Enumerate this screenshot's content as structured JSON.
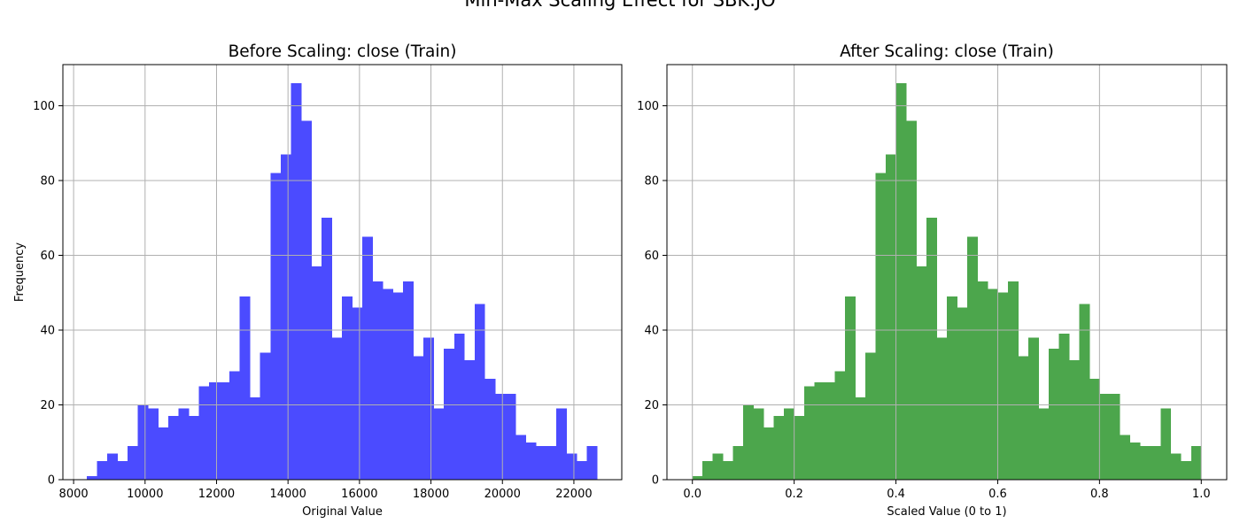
{
  "suptitle": "Min-Max Scaling Effect for SBK.JO",
  "chart_data": [
    {
      "type": "bar",
      "title": "Before Scaling: close (Train)",
      "xlabel": "Original Value",
      "ylabel": "Frequency",
      "color": "#4b4bff",
      "x_ticks": [
        8000,
        10000,
        12000,
        14000,
        16000,
        18000,
        20000,
        22000
      ],
      "x_tick_labels": [
        "8000",
        "10000",
        "12000",
        "14000",
        "16000",
        "18000",
        "20000",
        "22000"
      ],
      "y_ticks": [
        0,
        20,
        40,
        60,
        80,
        100
      ],
      "xlim": [
        7700,
        23340
      ],
      "ylim": [
        0,
        111
      ],
      "grid": true,
      "bin_start": 8364,
      "bin_width": 285.7,
      "values": [
        1,
        5,
        7,
        5,
        9,
        20,
        19,
        14,
        17,
        19,
        17,
        25,
        26,
        26,
        29,
        49,
        22,
        34,
        82,
        87,
        106,
        96,
        57,
        70,
        38,
        49,
        46,
        65,
        53,
        51,
        50,
        53,
        33,
        38,
        19,
        35,
        39,
        32,
        47,
        27,
        23,
        23,
        12,
        10,
        9,
        9,
        19,
        7,
        5,
        9
      ]
    },
    {
      "type": "bar",
      "title": "After Scaling: close (Train)",
      "xlabel": "Scaled Value (0 to 1)",
      "ylabel": "",
      "color": "#4ca64c",
      "x_ticks": [
        0.0,
        0.2,
        0.4,
        0.6,
        0.8,
        1.0
      ],
      "x_tick_labels": [
        "0.0",
        "0.2",
        "0.4",
        "0.6",
        "0.8",
        "1.0"
      ],
      "y_ticks": [
        0,
        20,
        40,
        60,
        80,
        100
      ],
      "xlim": [
        -0.05,
        1.05
      ],
      "ylim": [
        0,
        111
      ],
      "grid": true,
      "bin_start": 0.0,
      "bin_width": 0.02,
      "values": [
        1,
        5,
        7,
        5,
        9,
        20,
        19,
        14,
        17,
        19,
        17,
        25,
        26,
        26,
        29,
        49,
        22,
        34,
        82,
        87,
        106,
        96,
        57,
        70,
        38,
        49,
        46,
        65,
        53,
        51,
        50,
        53,
        33,
        38,
        19,
        35,
        39,
        32,
        47,
        27,
        23,
        23,
        12,
        10,
        9,
        9,
        19,
        7,
        5,
        9
      ]
    }
  ]
}
